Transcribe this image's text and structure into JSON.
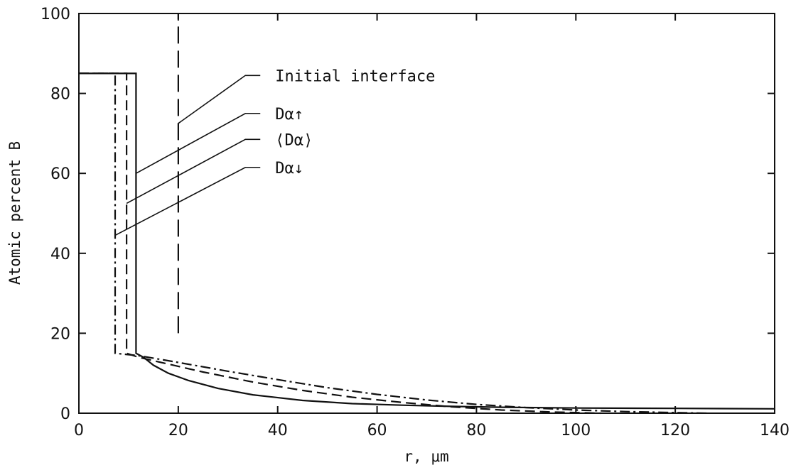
{
  "chart_data": {
    "type": "line",
    "title": "",
    "xlabel": "r, μm",
    "ylabel": "Atomic percent B",
    "xlim": [
      0,
      140
    ],
    "ylim": [
      0,
      100
    ],
    "xticks": [
      0,
      20,
      40,
      60,
      80,
      100,
      120,
      140
    ],
    "yticks": [
      0,
      20,
      40,
      60,
      80,
      100
    ],
    "grid": false,
    "legend": "annotations",
    "series": [
      {
        "name": "Dα↑",
        "style": "solid",
        "x": [
          0,
          11.5,
          11.5,
          13,
          15,
          18,
          22,
          28,
          35,
          45,
          55,
          65,
          75,
          85,
          100,
          120,
          140
        ],
        "y": [
          85,
          85,
          15,
          14,
          12,
          10,
          8.2,
          6.2,
          4.6,
          3.2,
          2.4,
          2.0,
          1.7,
          1.5,
          1.3,
          1.2,
          1.1
        ]
      },
      {
        "name": "⟨Dα⟩",
        "style": "dashed",
        "x": [
          0,
          9.6,
          9.6,
          12,
          18,
          25,
          35,
          45,
          55,
          65,
          75,
          85,
          95,
          105
        ],
        "y": [
          85,
          85,
          15,
          14,
          12.3,
          10.3,
          7.8,
          5.7,
          4.0,
          2.7,
          1.6,
          0.8,
          0.3,
          0
        ]
      },
      {
        "name": "Dα↓",
        "style": "dashdot",
        "x": [
          0,
          7.3,
          7.3,
          12,
          20,
          30,
          40,
          50,
          60,
          70,
          80,
          90,
          100,
          110,
          120,
          127
        ],
        "y": [
          85,
          85,
          15,
          14.4,
          12.7,
          10.5,
          8.4,
          6.4,
          4.7,
          3.3,
          2.2,
          1.4,
          0.8,
          0.4,
          0.15,
          0
        ]
      },
      {
        "name": "Initial interface",
        "style": "longdash",
        "x": [
          20,
          20
        ],
        "y": [
          20,
          100
        ]
      }
    ],
    "annotations": [
      {
        "label": "Initial interface",
        "series": 3
      },
      {
        "label": "Dα↑",
        "series": 0
      },
      {
        "label": "⟨Dα⟩",
        "series": 1
      },
      {
        "label": "Dα↓",
        "series": 2
      }
    ]
  }
}
